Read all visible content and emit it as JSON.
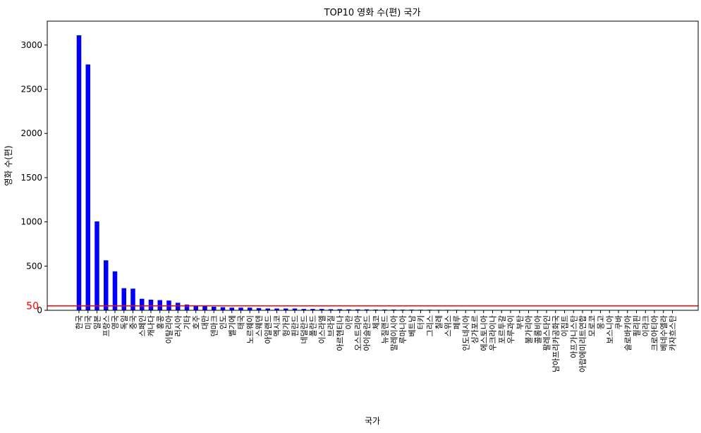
{
  "chart_data": {
    "type": "bar",
    "title": "TOP10 영화 수(편) 국가",
    "x_label": "국가",
    "y_label": "영화 수(편)",
    "categories": [
      "한국",
      "미국",
      "일본",
      "프랑스",
      "영국",
      "독일",
      "중국",
      "스페인",
      "캐나다",
      "홍콩",
      "이탈리아",
      "러시아",
      "기타",
      "호주",
      "대만",
      "덴마크",
      "인도",
      "벨기에",
      "태국",
      "노르웨이",
      "스웨덴",
      "아일랜드",
      "멕시코",
      "헝가리",
      "핀란드",
      "네덜란드",
      "폴란드",
      "이스라엘",
      "브라질",
      "아르헨티나",
      "이란",
      "오스트리아",
      "아이슬란드",
      "체코",
      "뉴질랜드",
      "말레이시아",
      "루마니아",
      "베트남",
      "터키",
      "그리스",
      "칠레",
      "스위스",
      "페루",
      "인도네시아",
      "싱가포르",
      "에스토니아",
      "우크라이나",
      "포르투갈",
      "우루과이",
      "부탄",
      "불가리아",
      "콜롬비아",
      "팔레스타인",
      "남아프리카공화국",
      "이집트",
      "아프가니스탄",
      "아랍에미리트연합",
      "모로코",
      "몽고",
      "보스니아",
      "쿠바",
      "슬로바키아",
      "필리핀",
      "이라크",
      "크로아티아",
      "베네수엘라",
      "카자흐스탄"
    ],
    "values": [
      3110,
      2780,
      1005,
      565,
      440,
      250,
      245,
      130,
      120,
      115,
      110,
      85,
      65,
      45,
      45,
      40,
      35,
      30,
      30,
      30,
      25,
      20,
      20,
      20,
      20,
      15,
      15,
      15,
      12,
      12,
      10,
      10,
      10,
      8,
      8,
      8,
      7,
      7,
      6,
      6,
      5,
      5,
      5,
      4,
      4,
      3,
      3,
      3,
      2,
      2,
      2,
      2,
      2,
      2,
      1,
      1,
      1,
      1,
      1,
      1,
      1,
      1,
      1,
      1,
      1,
      1,
      1
    ],
    "color": "#0000ff",
    "ylim": [
      0,
      3270
    ],
    "yticks": [
      0,
      500,
      1000,
      1500,
      2000,
      2500,
      3000
    ],
    "hline": 50,
    "hline_color": "#ff0000"
  }
}
